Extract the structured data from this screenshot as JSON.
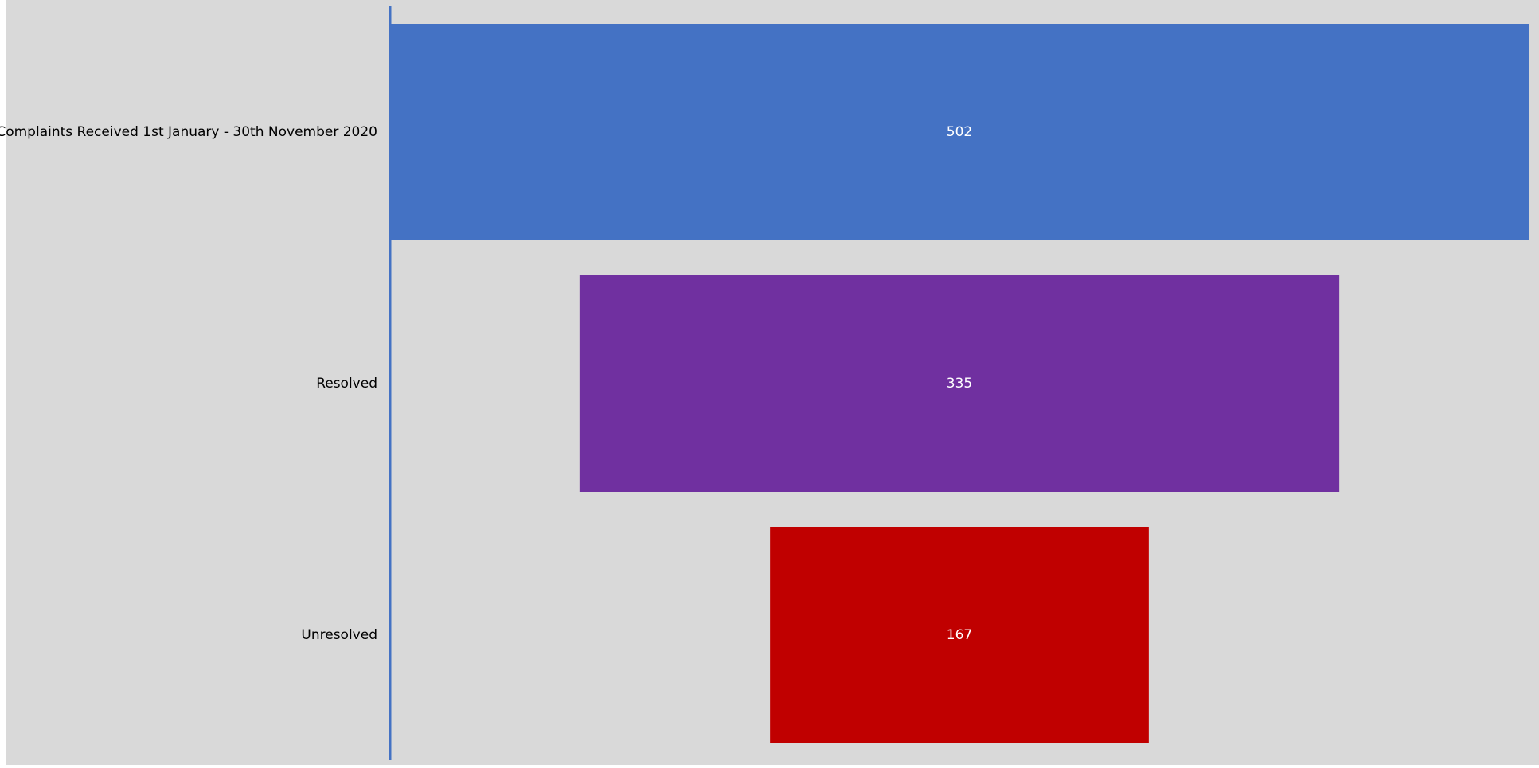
{
  "chart_data": {
    "type": "bar",
    "subtype": "funnel",
    "orientation": "horizontal",
    "title": "",
    "xlabel": "",
    "ylabel": "",
    "grid": false,
    "legend": "none",
    "categories": [
      "Complaints Received 1st January - 30th November 2020",
      "Resolved",
      "Unresolved"
    ],
    "values": [
      502,
      335,
      167
    ],
    "data_labels": [
      "502",
      "335",
      "167"
    ],
    "colors": [
      "#4472c4",
      "#7030a0",
      "#c00000"
    ],
    "axis_color": "#4472c4",
    "background_color": "#d9d9d9"
  }
}
